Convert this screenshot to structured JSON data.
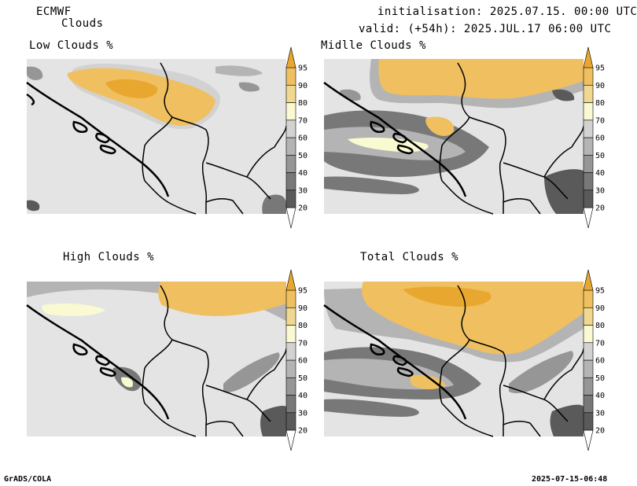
{
  "header": {
    "model": "ECMWF",
    "product": "Clouds",
    "initialisation": "initialisation: 2025.07.15. 00:00 UTC",
    "valid": "valid: (+54h): 2025.JUL.17 06:00 UTC"
  },
  "panels": [
    {
      "id": "low",
      "title": "Low Clouds %"
    },
    {
      "id": "middle",
      "title": "Midlle Clouds %"
    },
    {
      "id": "high",
      "title": "High Clouds %"
    },
    {
      "id": "total",
      "title": "Total Clouds %"
    }
  ],
  "colorbar": {
    "levels": [
      "20",
      "30",
      "40",
      "50",
      "60",
      "70",
      "80",
      "90",
      "95"
    ],
    "colors": [
      "#ffffff",
      "#5a5a5a",
      "#787878",
      "#969696",
      "#b4b4b4",
      "#d2d2d2",
      "#fafad2",
      "#f0d890",
      "#f0c060",
      "#e8a830"
    ]
  },
  "footer": {
    "left": "GrADS/COLA",
    "right": "2025-07-15-06:48"
  }
}
